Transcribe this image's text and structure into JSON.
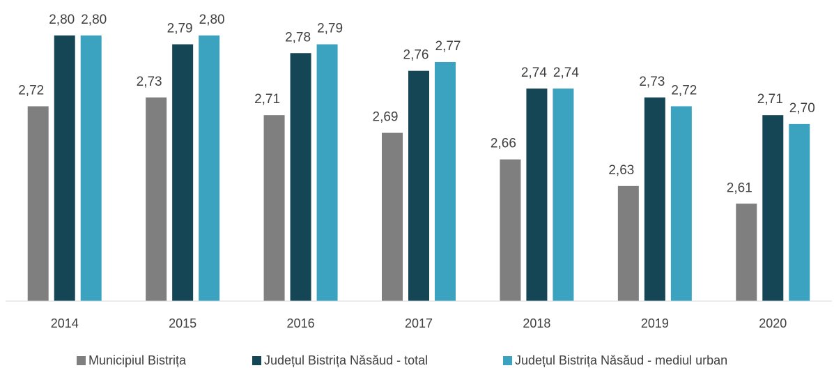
{
  "chart_data": {
    "type": "bar",
    "categories": [
      "2014",
      "2015",
      "2016",
      "2017",
      "2018",
      "2019",
      "2020"
    ],
    "series": [
      {
        "name": "Municipiul Bistrița",
        "color": "#7f7f7f",
        "values": [
          2.72,
          2.73,
          2.71,
          2.69,
          2.66,
          2.63,
          2.61
        ],
        "value_labels": [
          "2,72",
          "2,73",
          "2,71",
          "2,69",
          "2,66",
          "2,63",
          "2,61"
        ]
      },
      {
        "name": "Județul Bistrița Năsăud - total",
        "color": "#154655",
        "values": [
          2.8,
          2.79,
          2.78,
          2.76,
          2.74,
          2.73,
          2.71
        ],
        "value_labels": [
          "2,80",
          "2,79",
          "2,78",
          "2,76",
          "2,74",
          "2,73",
          "2,71"
        ]
      },
      {
        "name": "Județul Bistrița Năsăud - mediul urban",
        "color": "#3ba3c0",
        "values": [
          2.8,
          2.8,
          2.79,
          2.77,
          2.74,
          2.72,
          2.7
        ],
        "value_labels": [
          "2,80",
          "2,80",
          "2,79",
          "2,77",
          "2,74",
          "2,72",
          "2,70"
        ]
      }
    ],
    "ylim": [
      2.5,
      2.84
    ],
    "legend": "bottom"
  }
}
